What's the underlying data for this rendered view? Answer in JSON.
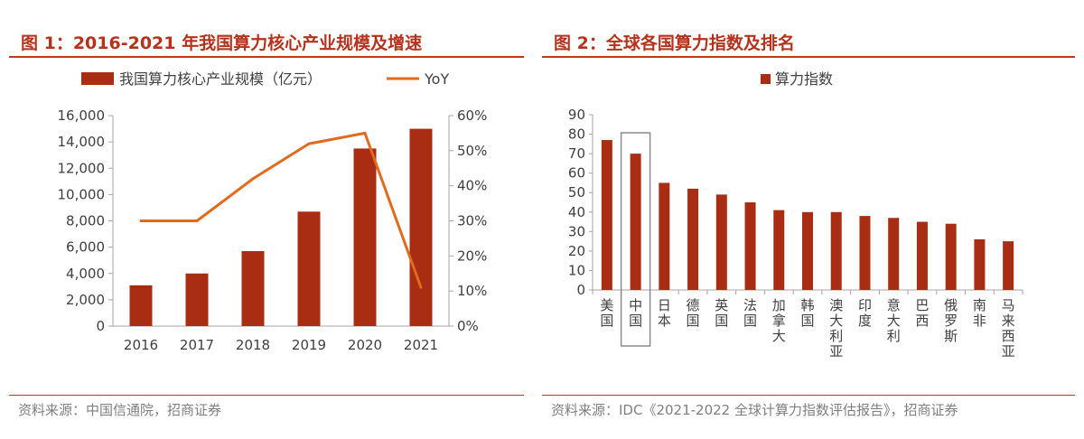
{
  "colors": {
    "bar": "#a82d12",
    "line": "#e06a1e",
    "title": "#b5321c",
    "rule": "#c0391f",
    "source": "#7f7f7f",
    "highlight": "#8c8c8c"
  },
  "left": {
    "title": "图 1：2016-2021 年我国算力核心产业规模及增速",
    "source": "资料来源：中国信通院，招商证券"
  },
  "right": {
    "title": "图 2：全球各国算力指数及排名",
    "source": "资料来源：IDC《2021-2022 全球计算力指数评估报告》，招商证券"
  },
  "chart_data": [
    {
      "type": "bar+line",
      "title": "2016-2021 年我国算力核心产业规模及增速",
      "categories": [
        "2016",
        "2017",
        "2018",
        "2019",
        "2020",
        "2021"
      ],
      "series": [
        {
          "name": "我国算力核心产业规模（亿元）",
          "type": "bar",
          "axis": "left",
          "values": [
            3100,
            4000,
            5700,
            8700,
            13500,
            15000
          ]
        },
        {
          "name": "YoY",
          "type": "line",
          "axis": "right",
          "values": [
            30,
            30,
            42,
            52,
            55,
            11
          ]
        }
      ],
      "y_left": {
        "min": 0,
        "max": 16000,
        "step": 2000,
        "tick_labels": [
          "0",
          "2,000",
          "4,000",
          "6,000",
          "8,000",
          "10,000",
          "12,000",
          "14,000",
          "16,000"
        ]
      },
      "y_right": {
        "min": 0,
        "max": 60,
        "step": 10,
        "tick_labels": [
          "0%",
          "10%",
          "20%",
          "30%",
          "40%",
          "50%",
          "60%"
        ]
      },
      "legend": "top",
      "grid": false
    },
    {
      "type": "bar",
      "title": "全球各国算力指数及排名",
      "categories": [
        "美国",
        "中国",
        "日本",
        "德国",
        "英国",
        "法国",
        "加拿大",
        "韩国",
        "澳大利亚",
        "印度",
        "意大利",
        "巴西",
        "俄罗斯",
        "南非",
        "马来西亚"
      ],
      "series": [
        {
          "name": "算力指数",
          "values": [
            77,
            70,
            55,
            52,
            49,
            45,
            41,
            40,
            40,
            38,
            37,
            35,
            34,
            26,
            25
          ]
        }
      ],
      "highlight_category": "中国",
      "y": {
        "min": 0,
        "max": 90,
        "step": 10,
        "tick_labels": [
          "0",
          "10",
          "20",
          "30",
          "40",
          "50",
          "60",
          "70",
          "80",
          "90"
        ]
      },
      "legend": "top",
      "grid": false
    }
  ]
}
